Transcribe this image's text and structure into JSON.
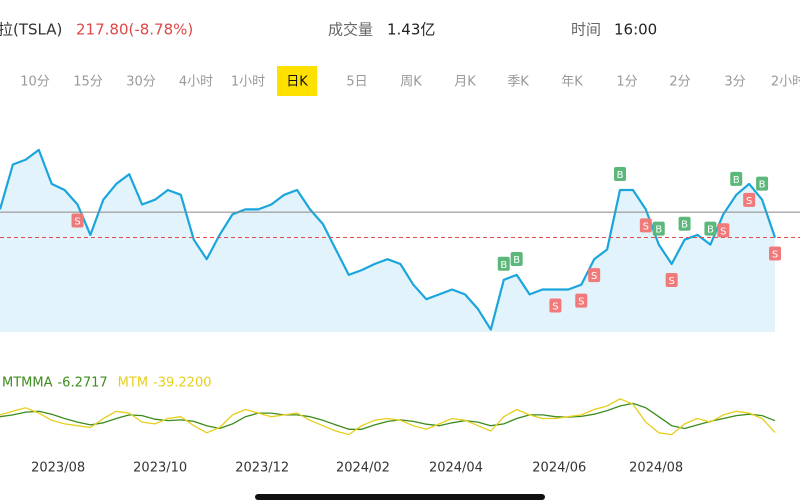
{
  "header": {
    "name": "拉(TSLA)",
    "quote": "217.80(-8.78%)",
    "volume_label": "成交量",
    "volume": "1.43亿",
    "time_label": "时间",
    "time": "16:00"
  },
  "tabs": {
    "items": [
      "10分",
      "15分",
      "30分",
      "4小时",
      "1小时",
      "日K",
      "5日",
      "周K",
      "月K",
      "季K",
      "年K",
      "1分",
      "2分",
      "3分",
      "2小时"
    ],
    "selected": 5
  },
  "chart_data": [
    {
      "type": "line",
      "color": "#1aa6dd",
      "fill": "#e3f3fb",
      "values": [
        241,
        278,
        282,
        290,
        262,
        257,
        245,
        220,
        249,
        262,
        270,
        245,
        249,
        257,
        253,
        216,
        200,
        220,
        237,
        241,
        241,
        245,
        253,
        257,
        241,
        229,
        208,
        187,
        191,
        196,
        200,
        196,
        179,
        167,
        171,
        175,
        171,
        159,
        142,
        183,
        187,
        171,
        175,
        175,
        175,
        179,
        200,
        208,
        257,
        257,
        241,
        212,
        196,
        216,
        220,
        212,
        237,
        253,
        262,
        249,
        217.8
      ],
      "xlim": [
        0,
        60
      ],
      "ylim": [
        140,
        327
      ],
      "xticks": [
        {
          "value": 4.5,
          "label": "2023/08"
        },
        {
          "value": 12.4,
          "label": "2023/10"
        },
        {
          "value": 20.3,
          "label": "2023/12"
        },
        {
          "value": 28.1,
          "label": "2024/02"
        },
        {
          "value": 35.3,
          "label": "2024/04"
        },
        {
          "value": 43.3,
          "label": "2024/06"
        },
        {
          "value": 50.8,
          "label": "2024/08"
        }
      ],
      "ref_lines": [
        {
          "value": 238.8,
          "color": "#888888",
          "dash": false
        },
        {
          "value": 217.8,
          "color": "#e05050",
          "dash": true
        }
      ],
      "markers": [
        {
          "x": 6,
          "label": "S"
        },
        {
          "x": 39,
          "label": "B"
        },
        {
          "x": 40,
          "label": "B"
        },
        {
          "x": 43,
          "label": "S"
        },
        {
          "x": 45,
          "label": "S"
        },
        {
          "x": 46,
          "label": "S"
        },
        {
          "x": 48,
          "label": "B"
        },
        {
          "x": 50,
          "label": "S"
        },
        {
          "x": 51,
          "label": "B"
        },
        {
          "x": 52,
          "label": "S"
        },
        {
          "x": 53,
          "label": "B"
        },
        {
          "x": 55,
          "label": "B"
        },
        {
          "x": 56,
          "label": "S"
        },
        {
          "x": 57,
          "label": "B"
        },
        {
          "x": 58,
          "label": "S"
        },
        {
          "x": 59,
          "label": "B"
        },
        {
          "x": 60,
          "label": "S"
        }
      ],
      "marker_colors": {
        "B": "#5cb87a",
        "S": "#f07a7a"
      }
    },
    {
      "type": "line",
      "xlim": [
        0,
        60
      ],
      "ylim": [
        -60,
        60
      ],
      "series": [
        {
          "name": "MTMMA",
          "color": "#3d8c1e",
          "current_label": "-6.2717",
          "values": [
            5,
            10,
            18,
            20,
            12,
            0,
            -10,
            -18,
            -12,
            0,
            10,
            8,
            -2,
            -6,
            -4,
            -8,
            -20,
            -28,
            -15,
            5,
            15,
            15,
            10,
            10,
            5,
            -5,
            -18,
            -30,
            -30,
            -18,
            -8,
            -4,
            -8,
            -16,
            -20,
            -12,
            -6,
            -10,
            -20,
            -15,
            0,
            10,
            10,
            5,
            4,
            6,
            12,
            22,
            35,
            42,
            30,
            5,
            -20,
            -28,
            -18,
            -8,
            0,
            8,
            12,
            8,
            -6.2717
          ]
        },
        {
          "name": "MTM",
          "color": "#e6cf1c",
          "current_label": "-39.2200",
          "values": [
            10,
            20,
            30,
            15,
            -5,
            -15,
            -20,
            -25,
            0,
            20,
            15,
            -10,
            -15,
            0,
            5,
            -20,
            -40,
            -25,
            10,
            25,
            15,
            5,
            10,
            15,
            -5,
            -20,
            -35,
            -45,
            -20,
            -5,
            0,
            -5,
            -20,
            -30,
            -15,
            0,
            -5,
            -20,
            -35,
            5,
            25,
            10,
            0,
            0,
            5,
            10,
            25,
            35,
            55,
            40,
            -10,
            -40,
            -45,
            -15,
            0,
            -10,
            10,
            20,
            15,
            0,
            -39.22
          ]
        }
      ]
    }
  ]
}
